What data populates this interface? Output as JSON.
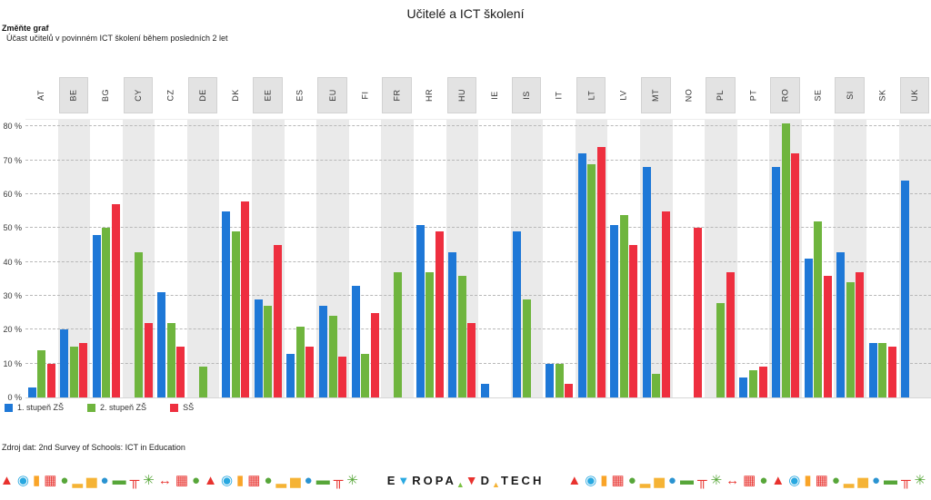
{
  "title": "Učitelé a ICT školení",
  "controls": {
    "change_label": "Změňte graf"
  },
  "subtitle": "Účast učitelů v povinném ICT školení během posledních 2 let",
  "source": "Zdroj dat: 2nd Survey of Schools: ICT in Education",
  "colors": {
    "blue": "#1e78d7",
    "green": "#6fb53e",
    "red": "#ee2f3f",
    "band": "#eaeaea",
    "grid": "#b8b8b8"
  },
  "chart_data": {
    "type": "bar",
    "categories": [
      "AT",
      "BE",
      "BG",
      "CY",
      "CZ",
      "DE",
      "DK",
      "EE",
      "ES",
      "EU",
      "FI",
      "FR",
      "HR",
      "HU",
      "IE",
      "IS",
      "IT",
      "LT",
      "LV",
      "MT",
      "NO",
      "PL",
      "PT",
      "RO",
      "SE",
      "SI",
      "SK",
      "UK"
    ],
    "shaded_categories": [
      "BE",
      "CY",
      "DE",
      "EE",
      "EU",
      "FR",
      "HU",
      "IS",
      "LT",
      "MT",
      "PL",
      "RO",
      "SI",
      "UK"
    ],
    "series": [
      {
        "name": "1. stupeň ZŠ",
        "color": "#1e78d7",
        "values": [
          3,
          20,
          48,
          null,
          31,
          null,
          55,
          29,
          13,
          27,
          33,
          null,
          51,
          43,
          4,
          49,
          10,
          72,
          51,
          68,
          null,
          null,
          6,
          68,
          41,
          43,
          16,
          64
        ]
      },
      {
        "name": "2. stupeň ZŠ",
        "color": "#6fb53e",
        "values": [
          14,
          15,
          50,
          43,
          22,
          9,
          49,
          27,
          21,
          24,
          13,
          37,
          37,
          36,
          null,
          29,
          10,
          69,
          54,
          7,
          null,
          28,
          8,
          81,
          52,
          34,
          16,
          null
        ]
      },
      {
        "name": "SŠ",
        "color": "#ee2f3f",
        "values": [
          10,
          16,
          57,
          22,
          15,
          null,
          58,
          45,
          15,
          12,
          25,
          null,
          49,
          22,
          null,
          null,
          4,
          74,
          45,
          55,
          50,
          37,
          9,
          72,
          36,
          37,
          15,
          null
        ]
      }
    ],
    "xlabel": "",
    "ylabel": "",
    "ylim": [
      0,
      82
    ],
    "yticks": [
      {
        "value": 0,
        "label": "0 %"
      },
      {
        "value": 10,
        "label": "10 %"
      },
      {
        "value": 20,
        "label": "20 %"
      },
      {
        "value": 30,
        "label": "30 %"
      },
      {
        "value": 40,
        "label": "40 %"
      },
      {
        "value": 50,
        "label": "50 %"
      },
      {
        "value": 60,
        "label": "60 %"
      },
      {
        "value": 70,
        "label": "70 %"
      },
      {
        "value": 80,
        "label": "80 %"
      }
    ],
    "grid": "horizontal-dashed",
    "legend_position": "bottom-left"
  },
  "footer": {
    "logo_segments": [
      {
        "text": "E",
        "color": "#1a1a1a",
        "cls": ""
      },
      {
        "text": "▼",
        "color": "#2aa9e1",
        "cls": ""
      },
      {
        "text": "ROPA",
        "color": "#1a1a1a",
        "cls": ""
      },
      {
        "text": "▲",
        "color": "#7ac143",
        "cls": "tri-small"
      },
      {
        "text": "▼",
        "color": "#e8322e",
        "cls": "sep"
      },
      {
        "text": "D",
        "color": "#1a1a1a",
        "cls": ""
      },
      {
        "text": "▲",
        "color": "#f5b335",
        "cls": "tri-small"
      },
      {
        "text": "TECH",
        "color": "#1a1a1a",
        "cls": ""
      }
    ],
    "icon_pattern": [
      {
        "name": "mountain-icon",
        "glyph": "▲",
        "color": "#e8322e"
      },
      {
        "name": "ferris-wheel-icon",
        "glyph": "◉",
        "color": "#29a8e0"
      },
      {
        "name": "tower-icon",
        "glyph": "▮",
        "color": "#f9a428"
      },
      {
        "name": "building-icon",
        "glyph": "▦",
        "color": "#e8322e"
      },
      {
        "name": "tree-icon",
        "glyph": "●",
        "color": "#57a639"
      },
      {
        "name": "bar-chart-icon",
        "glyph": "▂▅",
        "color": "#f5b335"
      },
      {
        "name": "globe-icon",
        "glyph": "●",
        "color": "#2a93d1"
      },
      {
        "name": "car-icon",
        "glyph": "▬",
        "color": "#57a639"
      },
      {
        "name": "bench-icon",
        "glyph": "╥",
        "color": "#e8322e"
      },
      {
        "name": "gear-icon",
        "glyph": "✳",
        "color": "#57a639"
      },
      {
        "name": "railway-icon",
        "glyph": "↔",
        "color": "#e8322e"
      },
      {
        "name": "building-icon",
        "glyph": "▦",
        "color": "#e8322e"
      },
      {
        "name": "tree-icon",
        "glyph": "●",
        "color": "#57a639"
      }
    ]
  }
}
